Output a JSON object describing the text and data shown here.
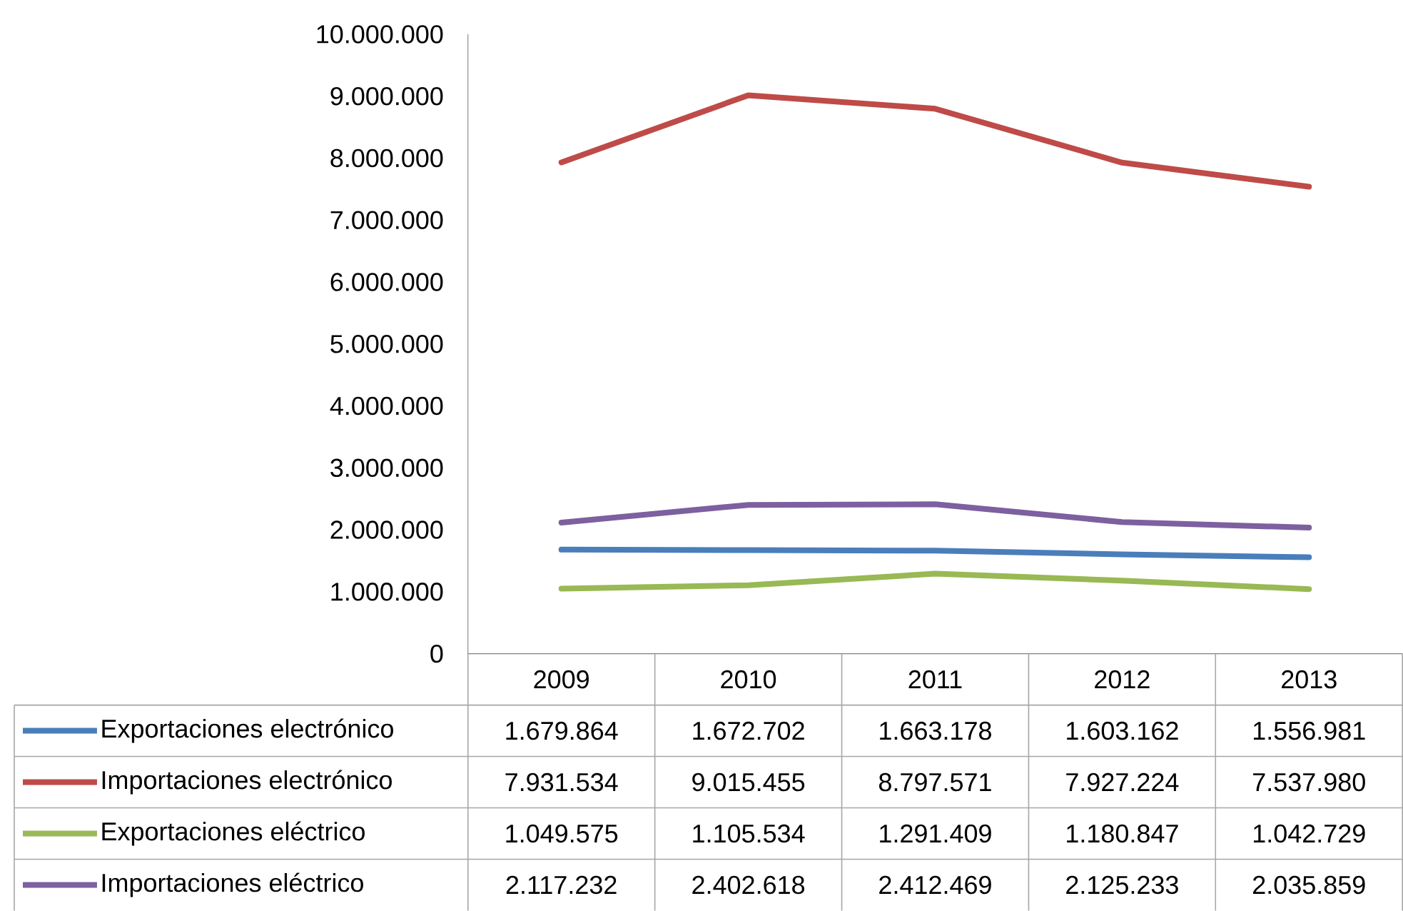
{
  "chart_data": {
    "type": "line",
    "categories": [
      "2009",
      "2010",
      "2011",
      "2012",
      "2013"
    ],
    "ylim": [
      0,
      10000000
    ],
    "yticks": [
      {
        "value": 0,
        "label": "0"
      },
      {
        "value": 1000000,
        "label": "1.000.000"
      },
      {
        "value": 2000000,
        "label": "2.000.000"
      },
      {
        "value": 3000000,
        "label": "3.000.000"
      },
      {
        "value": 4000000,
        "label": "4.000.000"
      },
      {
        "value": 5000000,
        "label": "5.000.000"
      },
      {
        "value": 6000000,
        "label": "6.000.000"
      },
      {
        "value": 7000000,
        "label": "7.000.000"
      },
      {
        "value": 8000000,
        "label": "8.000.000"
      },
      {
        "value": 9000000,
        "label": "9.000.000"
      },
      {
        "value": 10000000,
        "label": "10.000.000"
      }
    ],
    "legend": "bottom",
    "series": [
      {
        "name": "Exportaciones electrónico",
        "color": "#4a7ebb",
        "values": [
          1679864,
          1672702,
          1663178,
          1603162,
          1556981
        ],
        "value_labels": [
          "1.679.864",
          "1.672.702",
          "1.663.178",
          "1.603.162",
          "1.556.981"
        ]
      },
      {
        "name": "Importaciones electrónico",
        "color": "#be4b48",
        "values": [
          7931534,
          9015455,
          8797571,
          7927224,
          7537980
        ],
        "value_labels": [
          "7.931.534",
          "9.015.455",
          "8.797.571",
          "7.927.224",
          "7.537.980"
        ]
      },
      {
        "name": "Exportaciones eléctrico",
        "color": "#98b954",
        "values": [
          1049575,
          1105534,
          1291409,
          1180847,
          1042729
        ],
        "value_labels": [
          "1.049.575",
          "1.105.534",
          "1.291.409",
          "1.180.847",
          "1.042.729"
        ]
      },
      {
        "name": "Importaciones eléctrico",
        "color": "#7d60a0",
        "values": [
          2117232,
          2402618,
          2412469,
          2125233,
          2035859
        ],
        "value_labels": [
          "2.117.232",
          "2.402.618",
          "2.412.469",
          "2.125.233",
          "2.035.859"
        ]
      }
    ]
  }
}
